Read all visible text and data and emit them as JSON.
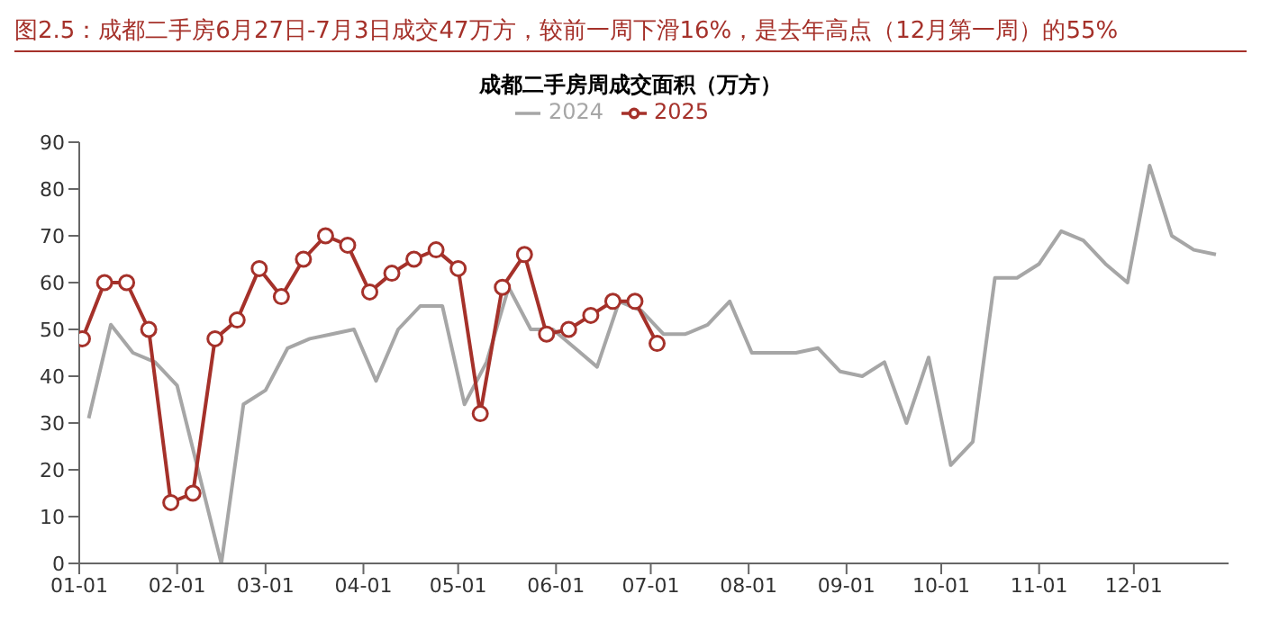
{
  "chart_data": {
    "type": "line",
    "title": "图2.5：成都二手房6月27日-7月3日成交47万方，较前一周下滑16%，是去年高点（12月第一周）的55%",
    "subtitle": "成都二手房周成交面积（万方）",
    "series": [
      {
        "name": "2024",
        "color": "#a6a6a6",
        "marker": "none",
        "x": [
          "--01-04",
          "--01-11",
          "--01-18",
          "--01-25",
          "--02-01",
          "--02-08",
          "--02-15",
          "--02-22",
          "--03-01",
          "--03-08",
          "--03-15",
          "--03-22",
          "--03-29",
          "--04-05",
          "--04-12",
          "--04-19",
          "--04-26",
          "--05-03",
          "--05-10",
          "--05-17",
          "--05-24",
          "--05-31",
          "--06-07",
          "--06-14",
          "--06-21",
          "--06-28",
          "--07-05",
          "--07-12",
          "--07-19",
          "--07-26",
          "--08-02",
          "--08-09",
          "--08-16",
          "--08-23",
          "--08-30",
          "--09-06",
          "--09-13",
          "--09-20",
          "--09-27",
          "--10-04",
          "--10-11",
          "--10-18",
          "--10-25",
          "--11-01",
          "--11-08",
          "--11-15",
          "--11-22",
          "--11-29",
          "--12-06",
          "--12-13",
          "--12-20",
          "--12-27"
        ],
        "values": [
          31,
          51,
          45,
          43,
          38,
          19,
          0,
          34,
          37,
          46,
          48,
          49,
          50,
          39,
          50,
          55,
          55,
          34,
          43,
          59,
          50,
          50,
          46,
          42,
          56,
          54,
          49,
          49,
          51,
          56,
          45,
          45,
          45,
          46,
          41,
          40,
          43,
          30,
          44,
          21,
          26,
          61,
          61,
          64,
          71,
          69,
          64,
          60,
          85,
          70,
          67,
          66
        ]
      },
      {
        "name": "2025",
        "color": "#a5312a",
        "marker": "circle",
        "x": [
          "--01-02",
          "--01-09",
          "--01-16",
          "--01-23",
          "--01-30",
          "--02-06",
          "--02-13",
          "--02-20",
          "--02-27",
          "--03-06",
          "--03-13",
          "--03-20",
          "--03-27",
          "--04-03",
          "--04-10",
          "--04-17",
          "--04-24",
          "--05-01",
          "--05-08",
          "--05-15",
          "--05-22",
          "--05-29",
          "--06-05",
          "--06-12",
          "--06-19",
          "--06-26",
          "--07-03"
        ],
        "values": [
          48,
          60,
          60,
          50,
          13,
          15,
          48,
          52,
          63,
          57,
          65,
          70,
          68,
          58,
          62,
          65,
          67,
          63,
          32,
          59,
          66,
          49,
          50,
          53,
          56,
          56,
          47
        ]
      }
    ],
    "xlim": [
      "--01-01",
      "--12-31"
    ],
    "xticks": [
      {
        "value": "--01-01",
        "label": "01-01"
      },
      {
        "value": "--02-01",
        "label": "02-01"
      },
      {
        "value": "--03-01",
        "label": "03-01"
      },
      {
        "value": "--04-01",
        "label": "04-01"
      },
      {
        "value": "--05-01",
        "label": "05-01"
      },
      {
        "value": "--06-01",
        "label": "06-01"
      },
      {
        "value": "--07-01",
        "label": "07-01"
      },
      {
        "value": "--08-01",
        "label": "08-01"
      },
      {
        "value": "--09-01",
        "label": "09-01"
      },
      {
        "value": "--10-01",
        "label": "10-01"
      },
      {
        "value": "--11-01",
        "label": "11-01"
      },
      {
        "value": "--12-01",
        "label": "12-01"
      }
    ],
    "ylim": [
      0,
      90
    ],
    "yticks": [
      0,
      10,
      20,
      30,
      40,
      50,
      60,
      70,
      80,
      90
    ],
    "grid": false,
    "legend": "top",
    "line_style": "solid"
  }
}
